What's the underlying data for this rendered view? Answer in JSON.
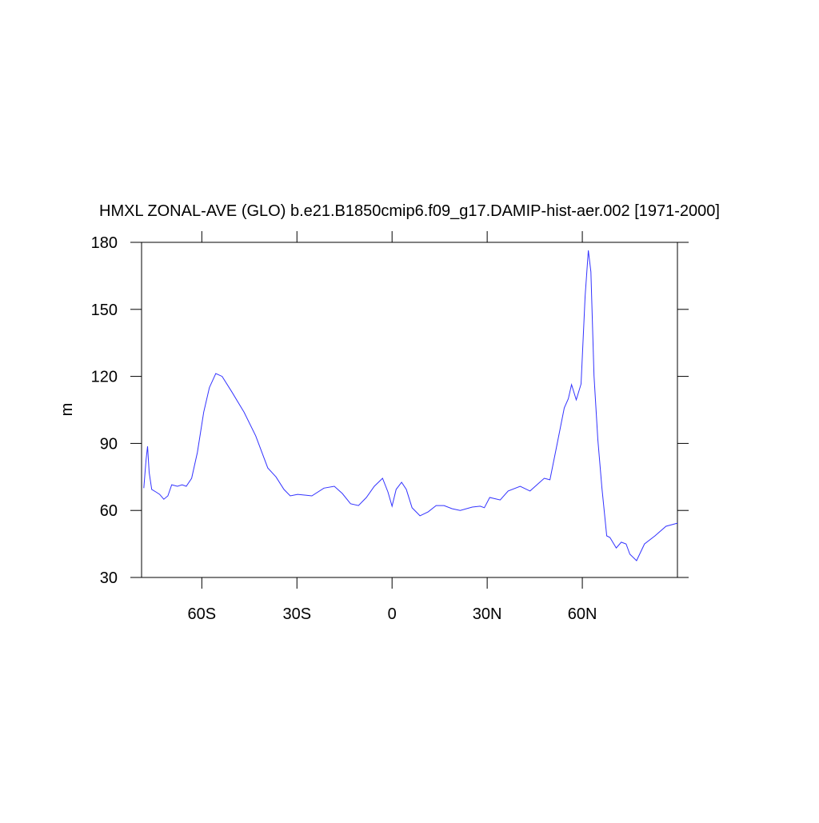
{
  "chart_data": {
    "type": "line",
    "title": "HMXL ZONAL-AVE (GLO) b.e21.B1850cmip6.f09_g17.DAMIP-hist-aer.002 [1971-2000]",
    "y_label": "m",
    "x": [
      -78.3,
      -77.6,
      -77.1,
      -76.6,
      -75.8,
      -74.5,
      -73.3,
      -72,
      -70.7,
      -69.5,
      -67.7,
      -66.2,
      -64.9,
      -63.2,
      -61.4,
      -59.4,
      -57.6,
      -55.6,
      -53.6,
      -50.5,
      -46.7,
      -43,
      -39.2,
      -36.6,
      -34.1,
      -32.1,
      -29.8,
      -25.3,
      -21.5,
      -18.2,
      -15.7,
      -13.1,
      -10.6,
      -8.1,
      -5.6,
      -3,
      -1.3,
      0,
      1.3,
      3,
      4.5,
      6.3,
      8.8,
      11.4,
      13.9,
      16.4,
      18.9,
      21.5,
      25.3,
      27.8,
      29.1,
      30.8,
      34.1,
      36.6,
      40.4,
      43.5,
      46,
      48,
      49.8,
      51.8,
      54.3,
      55.6,
      56.6,
      58.1,
      59.6,
      60.9,
      61.9,
      62.7,
      63.7,
      64.9,
      66.2,
      67.7,
      68.7,
      70.7,
      72.3,
      73.8,
      75,
      77.1,
      79.6,
      82.9,
      86.4,
      90
    ],
    "series": [
      {
        "name": "HMXL",
        "color": "#3333ff",
        "values": [
          70,
          82.6,
          88.7,
          77,
          69.4,
          68.3,
          67.2,
          65,
          66.5,
          71.5,
          70.8,
          71.5,
          70.8,
          74.4,
          86,
          104,
          115,
          121.3,
          120,
          113,
          104,
          93.4,
          79,
          75,
          69.4,
          66.5,
          67.2,
          66.5,
          70,
          70.8,
          67.6,
          63,
          62.2,
          65.8,
          70.8,
          74.4,
          68.3,
          61.9,
          69.4,
          72.6,
          69.4,
          61.2,
          57.6,
          59.4,
          62.2,
          62.2,
          60.8,
          60,
          61.5,
          61.9,
          61.2,
          65.8,
          64.7,
          68.7,
          70.8,
          68.7,
          71.9,
          74.4,
          73.7,
          88,
          105.9,
          110,
          116.3,
          109.5,
          116.6,
          156,
          176.4,
          166.8,
          120.2,
          91.6,
          70,
          48.6,
          47.9,
          43.2,
          45.8,
          45,
          40.4,
          37.5,
          45,
          48.6,
          52.9,
          54.3
        ]
      }
    ],
    "xlim": [
      -79,
      90
    ],
    "xticks": [
      {
        "value": -60,
        "label": "60S"
      },
      {
        "value": -30,
        "label": "30S"
      },
      0,
      {
        "value": 30,
        "label": "30N"
      },
      {
        "value": 60,
        "label": "60N"
      }
    ],
    "ylim": [
      30,
      180
    ],
    "yticks": [
      30,
      60,
      90,
      120,
      150,
      180
    ]
  }
}
